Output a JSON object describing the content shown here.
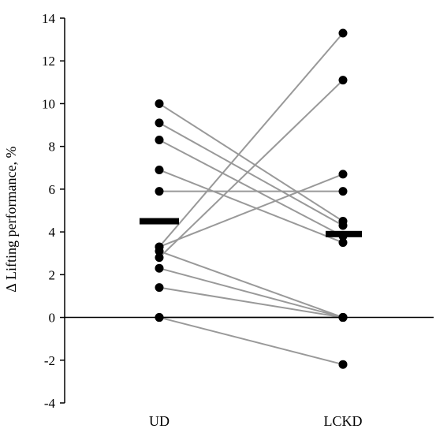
{
  "chart_data": {
    "type": "scatter",
    "title": "",
    "ylabel": "∆ Lifting performance, %",
    "xlabel": "",
    "categories": [
      "UD",
      "LCKD"
    ],
    "ylim": [
      -4,
      14
    ],
    "yticks": [
      -4,
      -2,
      0,
      2,
      4,
      6,
      8,
      10,
      12,
      14
    ],
    "grid": false,
    "legend": "none",
    "pairs": [
      [
        10.0,
        4.5
      ],
      [
        9.1,
        4.3
      ],
      [
        8.3,
        3.8
      ],
      [
        6.9,
        3.5
      ],
      [
        5.9,
        5.9
      ],
      [
        3.3,
        13.3
      ],
      [
        3.1,
        0.0
      ],
      [
        2.8,
        11.1
      ],
      [
        3.3,
        6.7
      ],
      [
        2.3,
        0.0
      ],
      [
        1.4,
        0.0
      ],
      [
        0.0,
        0.0
      ],
      [
        0.0,
        -2.2
      ]
    ],
    "means": [
      4.5,
      3.9
    ],
    "colors": {
      "points": "#000000",
      "lines": "#999999",
      "axis": "#000000"
    }
  }
}
